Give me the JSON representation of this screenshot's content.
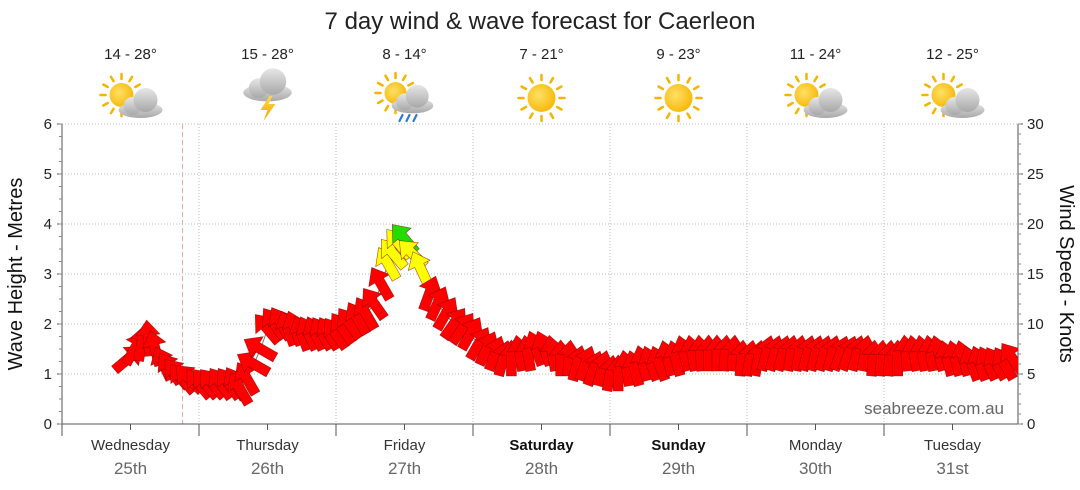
{
  "chart_data": {
    "type": "wind-wave-forecast",
    "title": "7 day wind & wave forecast for Caerleon",
    "ylabel_left": "Wave Height - Metres",
    "ylabel_right": "Wind Speed - Knots",
    "ylim_left": [
      0,
      6
    ],
    "ylim_right": [
      0,
      30
    ],
    "left_ticks": [
      "0",
      "1",
      "2",
      "3",
      "4",
      "5",
      "6"
    ],
    "right_ticks": [
      "0",
      "5",
      "10",
      "15",
      "20",
      "25",
      "30"
    ],
    "grid": true,
    "days": [
      {
        "name": "Wednesday",
        "date": "25th",
        "bold": false,
        "temp": "14 - 28°",
        "icon": "partly-cloudy-sun-icon"
      },
      {
        "name": "Thursday",
        "date": "26th",
        "bold": false,
        "temp": "15 - 28°",
        "icon": "thunderstorm-icon"
      },
      {
        "name": "Friday",
        "date": "27th",
        "bold": false,
        "temp": "8 - 14°",
        "icon": "sun-cloud-rain-icon"
      },
      {
        "name": "Saturday",
        "date": "28th",
        "bold": true,
        "temp": "7 - 21°",
        "icon": "sun-icon"
      },
      {
        "name": "Sunday",
        "date": "29th",
        "bold": true,
        "temp": "9 - 23°",
        "icon": "sun-icon"
      },
      {
        "name": "Monday",
        "date": "30th",
        "bold": false,
        "temp": "11 - 24°",
        "icon": "partly-cloudy-sun-icon"
      },
      {
        "name": "Tuesday",
        "date": "31st",
        "bold": false,
        "temp": "12 - 25°",
        "icon": "partly-cloudy-sun-icon"
      }
    ],
    "now_marker_day": 0.88,
    "wind_series": {
      "name": "Wind speed and direction",
      "points": [
        [
          0.48,
          6.5,
          320
        ],
        [
          0.53,
          7.5,
          300
        ],
        [
          0.58,
          8.0,
          280
        ],
        [
          0.63,
          8.5,
          265
        ],
        [
          0.68,
          7.5,
          255
        ],
        [
          0.74,
          6.0,
          245
        ],
        [
          0.79,
          5.5,
          235
        ],
        [
          0.84,
          5.0,
          230
        ],
        [
          0.88,
          4.5,
          230
        ],
        [
          0.93,
          4.5,
          225
        ],
        [
          1.0,
          4.0,
          230
        ],
        [
          1.05,
          4.0,
          230
        ],
        [
          1.1,
          4.0,
          230
        ],
        [
          1.16,
          4.0,
          235
        ],
        [
          1.22,
          4.0,
          235
        ],
        [
          1.27,
          4.0,
          240
        ],
        [
          1.3,
          3.5,
          240
        ],
        [
          1.35,
          4.5,
          240
        ],
        [
          1.4,
          6.0,
          210
        ],
        [
          1.45,
          7.5,
          210
        ],
        [
          1.5,
          9.5,
          230
        ],
        [
          1.55,
          10.0,
          235
        ],
        [
          1.6,
          10.0,
          240
        ],
        [
          1.65,
          9.5,
          250
        ],
        [
          1.7,
          9.5,
          250
        ],
        [
          1.75,
          9.0,
          250
        ],
        [
          1.8,
          9.0,
          245
        ],
        [
          1.85,
          9.0,
          245
        ],
        [
          1.9,
          9.0,
          240
        ],
        [
          1.95,
          9.0,
          240
        ],
        [
          2.0,
          9.0,
          235
        ],
        [
          2.05,
          9.5,
          235
        ],
        [
          2.1,
          10.0,
          235
        ],
        [
          2.16,
          10.5,
          240
        ],
        [
          2.22,
          11.0,
          240
        ],
        [
          2.28,
          12.0,
          235
        ],
        [
          2.33,
          14.0,
          240
        ],
        [
          2.38,
          16.0,
          240
        ],
        [
          2.42,
          17.0,
          230
        ],
        [
          2.46,
          18.0,
          230
        ],
        [
          2.5,
          18.5,
          230
        ],
        [
          2.56,
          17.0,
          225
        ],
        [
          2.62,
          15.5,
          245
        ],
        [
          2.68,
          13.0,
          290
        ],
        [
          2.74,
          12.0,
          295
        ],
        [
          2.8,
          11.0,
          300
        ],
        [
          2.86,
          10.0,
          305
        ],
        [
          2.92,
          9.5,
          305
        ],
        [
          2.98,
          9.0,
          300
        ],
        [
          3.04,
          8.0,
          300
        ],
        [
          3.1,
          7.5,
          295
        ],
        [
          3.16,
          7.0,
          290
        ],
        [
          3.22,
          6.5,
          285
        ],
        [
          3.28,
          6.5,
          270
        ],
        [
          3.34,
          7.0,
          260
        ],
        [
          3.4,
          7.0,
          260
        ],
        [
          3.46,
          7.5,
          250
        ],
        [
          3.52,
          7.5,
          250
        ],
        [
          3.58,
          7.0,
          260
        ],
        [
          3.64,
          6.5,
          270
        ],
        [
          3.7,
          6.5,
          275
        ],
        [
          3.76,
          6.0,
          285
        ],
        [
          3.82,
          6.0,
          290
        ],
        [
          3.88,
          5.5,
          290
        ],
        [
          3.94,
          5.5,
          285
        ],
        [
          4.0,
          5.0,
          280
        ],
        [
          4.06,
          5.0,
          270
        ],
        [
          4.12,
          5.5,
          260
        ],
        [
          4.18,
          5.5,
          255
        ],
        [
          4.24,
          6.0,
          255
        ],
        [
          4.3,
          6.0,
          250
        ],
        [
          4.36,
          6.0,
          250
        ],
        [
          4.42,
          6.5,
          255
        ],
        [
          4.48,
          6.5,
          255
        ],
        [
          4.54,
          7.0,
          255
        ],
        [
          4.6,
          7.0,
          260
        ],
        [
          4.66,
          7.0,
          265
        ],
        [
          4.72,
          7.0,
          270
        ],
        [
          4.78,
          7.0,
          270
        ],
        [
          4.84,
          7.0,
          275
        ],
        [
          4.9,
          7.0,
          275
        ],
        [
          4.96,
          6.5,
          275
        ],
        [
          5.02,
          6.5,
          280
        ],
        [
          5.08,
          6.5,
          280
        ],
        [
          5.14,
          7.0,
          285
        ],
        [
          5.2,
          7.0,
          285
        ],
        [
          5.26,
          7.0,
          285
        ],
        [
          5.32,
          7.0,
          280
        ],
        [
          5.38,
          7.0,
          280
        ],
        [
          5.44,
          7.0,
          285
        ],
        [
          5.5,
          7.0,
          285
        ],
        [
          5.56,
          7.0,
          285
        ],
        [
          5.62,
          7.0,
          285
        ],
        [
          5.68,
          7.0,
          290
        ],
        [
          5.74,
          7.0,
          290
        ],
        [
          5.8,
          7.0,
          285
        ],
        [
          5.86,
          7.0,
          280
        ],
        [
          5.92,
          6.5,
          275
        ],
        [
          5.98,
          6.5,
          275
        ],
        [
          6.04,
          6.5,
          275
        ],
        [
          6.1,
          6.5,
          270
        ],
        [
          6.16,
          7.0,
          265
        ],
        [
          6.22,
          7.0,
          260
        ],
        [
          6.28,
          7.0,
          260
        ],
        [
          6.34,
          7.0,
          260
        ],
        [
          6.4,
          7.0,
          255
        ],
        [
          6.46,
          6.5,
          255
        ],
        [
          6.52,
          6.5,
          255
        ],
        [
          6.58,
          6.5,
          255
        ],
        [
          6.64,
          6.0,
          250
        ],
        [
          6.7,
          6.0,
          250
        ],
        [
          6.76,
          6.0,
          245
        ],
        [
          6.82,
          6.0,
          240
        ],
        [
          6.88,
          6.0,
          240
        ],
        [
          6.94,
          6.5,
          235
        ]
      ]
    },
    "wind_color_scale": [
      {
        "max_knots": 15,
        "color": "#ff0000"
      },
      {
        "max_knots": 18,
        "color": "#ffff00"
      },
      {
        "max_knots": 30,
        "color": "#22dd00"
      }
    ]
  },
  "branding": {
    "site": "seabreeze.com.au"
  }
}
